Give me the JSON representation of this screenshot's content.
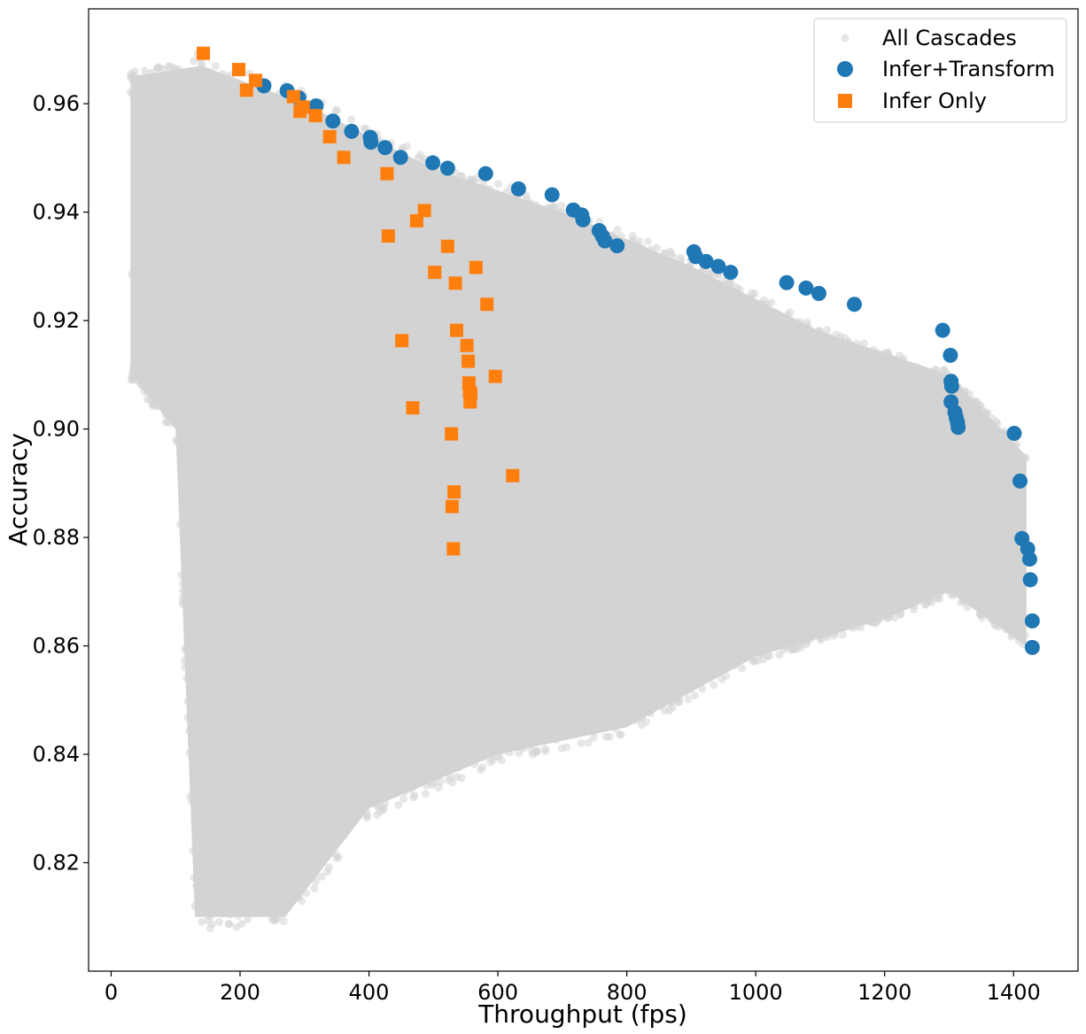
{
  "chart_data": {
    "type": "scatter",
    "title": "",
    "xlabel": "Throughput (fps)",
    "ylabel": "Accuracy",
    "xlim": [
      -35,
      1500
    ],
    "ylim": [
      0.8,
      0.9775
    ],
    "x_ticks": [
      0,
      200,
      400,
      600,
      800,
      1000,
      1200,
      1400
    ],
    "y_ticks": [
      0.82,
      0.84,
      0.86,
      0.88,
      0.9,
      0.92,
      0.94,
      0.96
    ],
    "y_tick_labels": [
      "0.82",
      "0.84",
      "0.86",
      "0.88",
      "0.90",
      "0.92",
      "0.94",
      "0.96"
    ],
    "grid": false,
    "legend_position": "top-right",
    "series": [
      {
        "name": "All Cascades",
        "marker": "circle",
        "color": "#d3d3d3",
        "density_region": {
          "upper_boundary": [
            [
              30,
              0.965
            ],
            [
              140,
              0.967
            ],
            [
              300,
              0.96
            ],
            [
              500,
              0.948
            ],
            [
              700,
              0.94
            ],
            [
              900,
              0.93
            ],
            [
              1100,
              0.918
            ],
            [
              1300,
              0.91
            ],
            [
              1420,
              0.895
            ]
          ],
          "lower_boundary": [
            [
              30,
              0.91
            ],
            [
              100,
              0.9
            ],
            [
              130,
              0.81
            ],
            [
              270,
              0.81
            ],
            [
              400,
              0.83
            ],
            [
              600,
              0.84
            ],
            [
              800,
              0.845
            ],
            [
              1000,
              0.858
            ],
            [
              1200,
              0.865
            ],
            [
              1300,
              0.87
            ],
            [
              1420,
              0.86
            ]
          ]
        }
      },
      {
        "name": "Infer+Transform",
        "marker": "circle",
        "color": "#1f77b4",
        "x": [
          237,
          273,
          291,
          318,
          344,
          373,
          402,
          403,
          425,
          449,
          499,
          522,
          581,
          632,
          684,
          717,
          730,
          732,
          757,
          762,
          766,
          785,
          904,
          907,
          923,
          942,
          961,
          1048,
          1078,
          1098,
          1153,
          1290,
          1302,
          1303,
          1304,
          1303,
          1309,
          1311,
          1313,
          1314,
          1401,
          1410,
          1413,
          1422,
          1425,
          1426,
          1429,
          1429
        ],
        "y": [
          0.9633,
          0.9624,
          0.9611,
          0.9596,
          0.9568,
          0.9549,
          0.9538,
          0.9529,
          0.9519,
          0.9501,
          0.9491,
          0.9481,
          0.9471,
          0.9443,
          0.9432,
          0.9404,
          0.9395,
          0.9386,
          0.9366,
          0.9356,
          0.9347,
          0.9338,
          0.9327,
          0.9318,
          0.9309,
          0.93,
          0.9289,
          0.927,
          0.926,
          0.925,
          0.923,
          0.9182,
          0.9136,
          0.9088,
          0.9079,
          0.905,
          0.9031,
          0.9021,
          0.9012,
          0.9003,
          0.8992,
          0.8904,
          0.8798,
          0.8779,
          0.876,
          0.8722,
          0.8646,
          0.8597
        ]
      },
      {
        "name": "Infer Only",
        "marker": "square",
        "color": "#ff7f0e",
        "x": [
          143,
          198,
          210,
          224,
          283,
          293,
          298,
          317,
          339,
          361,
          428,
          430,
          451,
          468,
          474,
          486,
          502,
          522,
          528,
          529,
          531,
          532,
          534,
          536,
          552,
          554,
          555,
          556,
          557,
          558,
          566,
          583,
          596,
          623
        ],
        "y": [
          0.9693,
          0.9663,
          0.9625,
          0.9643,
          0.9613,
          0.9586,
          0.9594,
          0.9578,
          0.9539,
          0.9501,
          0.9471,
          0.9356,
          0.9163,
          0.9039,
          0.9384,
          0.9403,
          0.9289,
          0.9337,
          0.8991,
          0.8857,
          0.8779,
          0.8884,
          0.9269,
          0.9182,
          0.9154,
          0.9125,
          0.9085,
          0.9069,
          0.905,
          0.9065,
          0.9298,
          0.923,
          0.9097,
          0.8914
        ]
      }
    ]
  }
}
